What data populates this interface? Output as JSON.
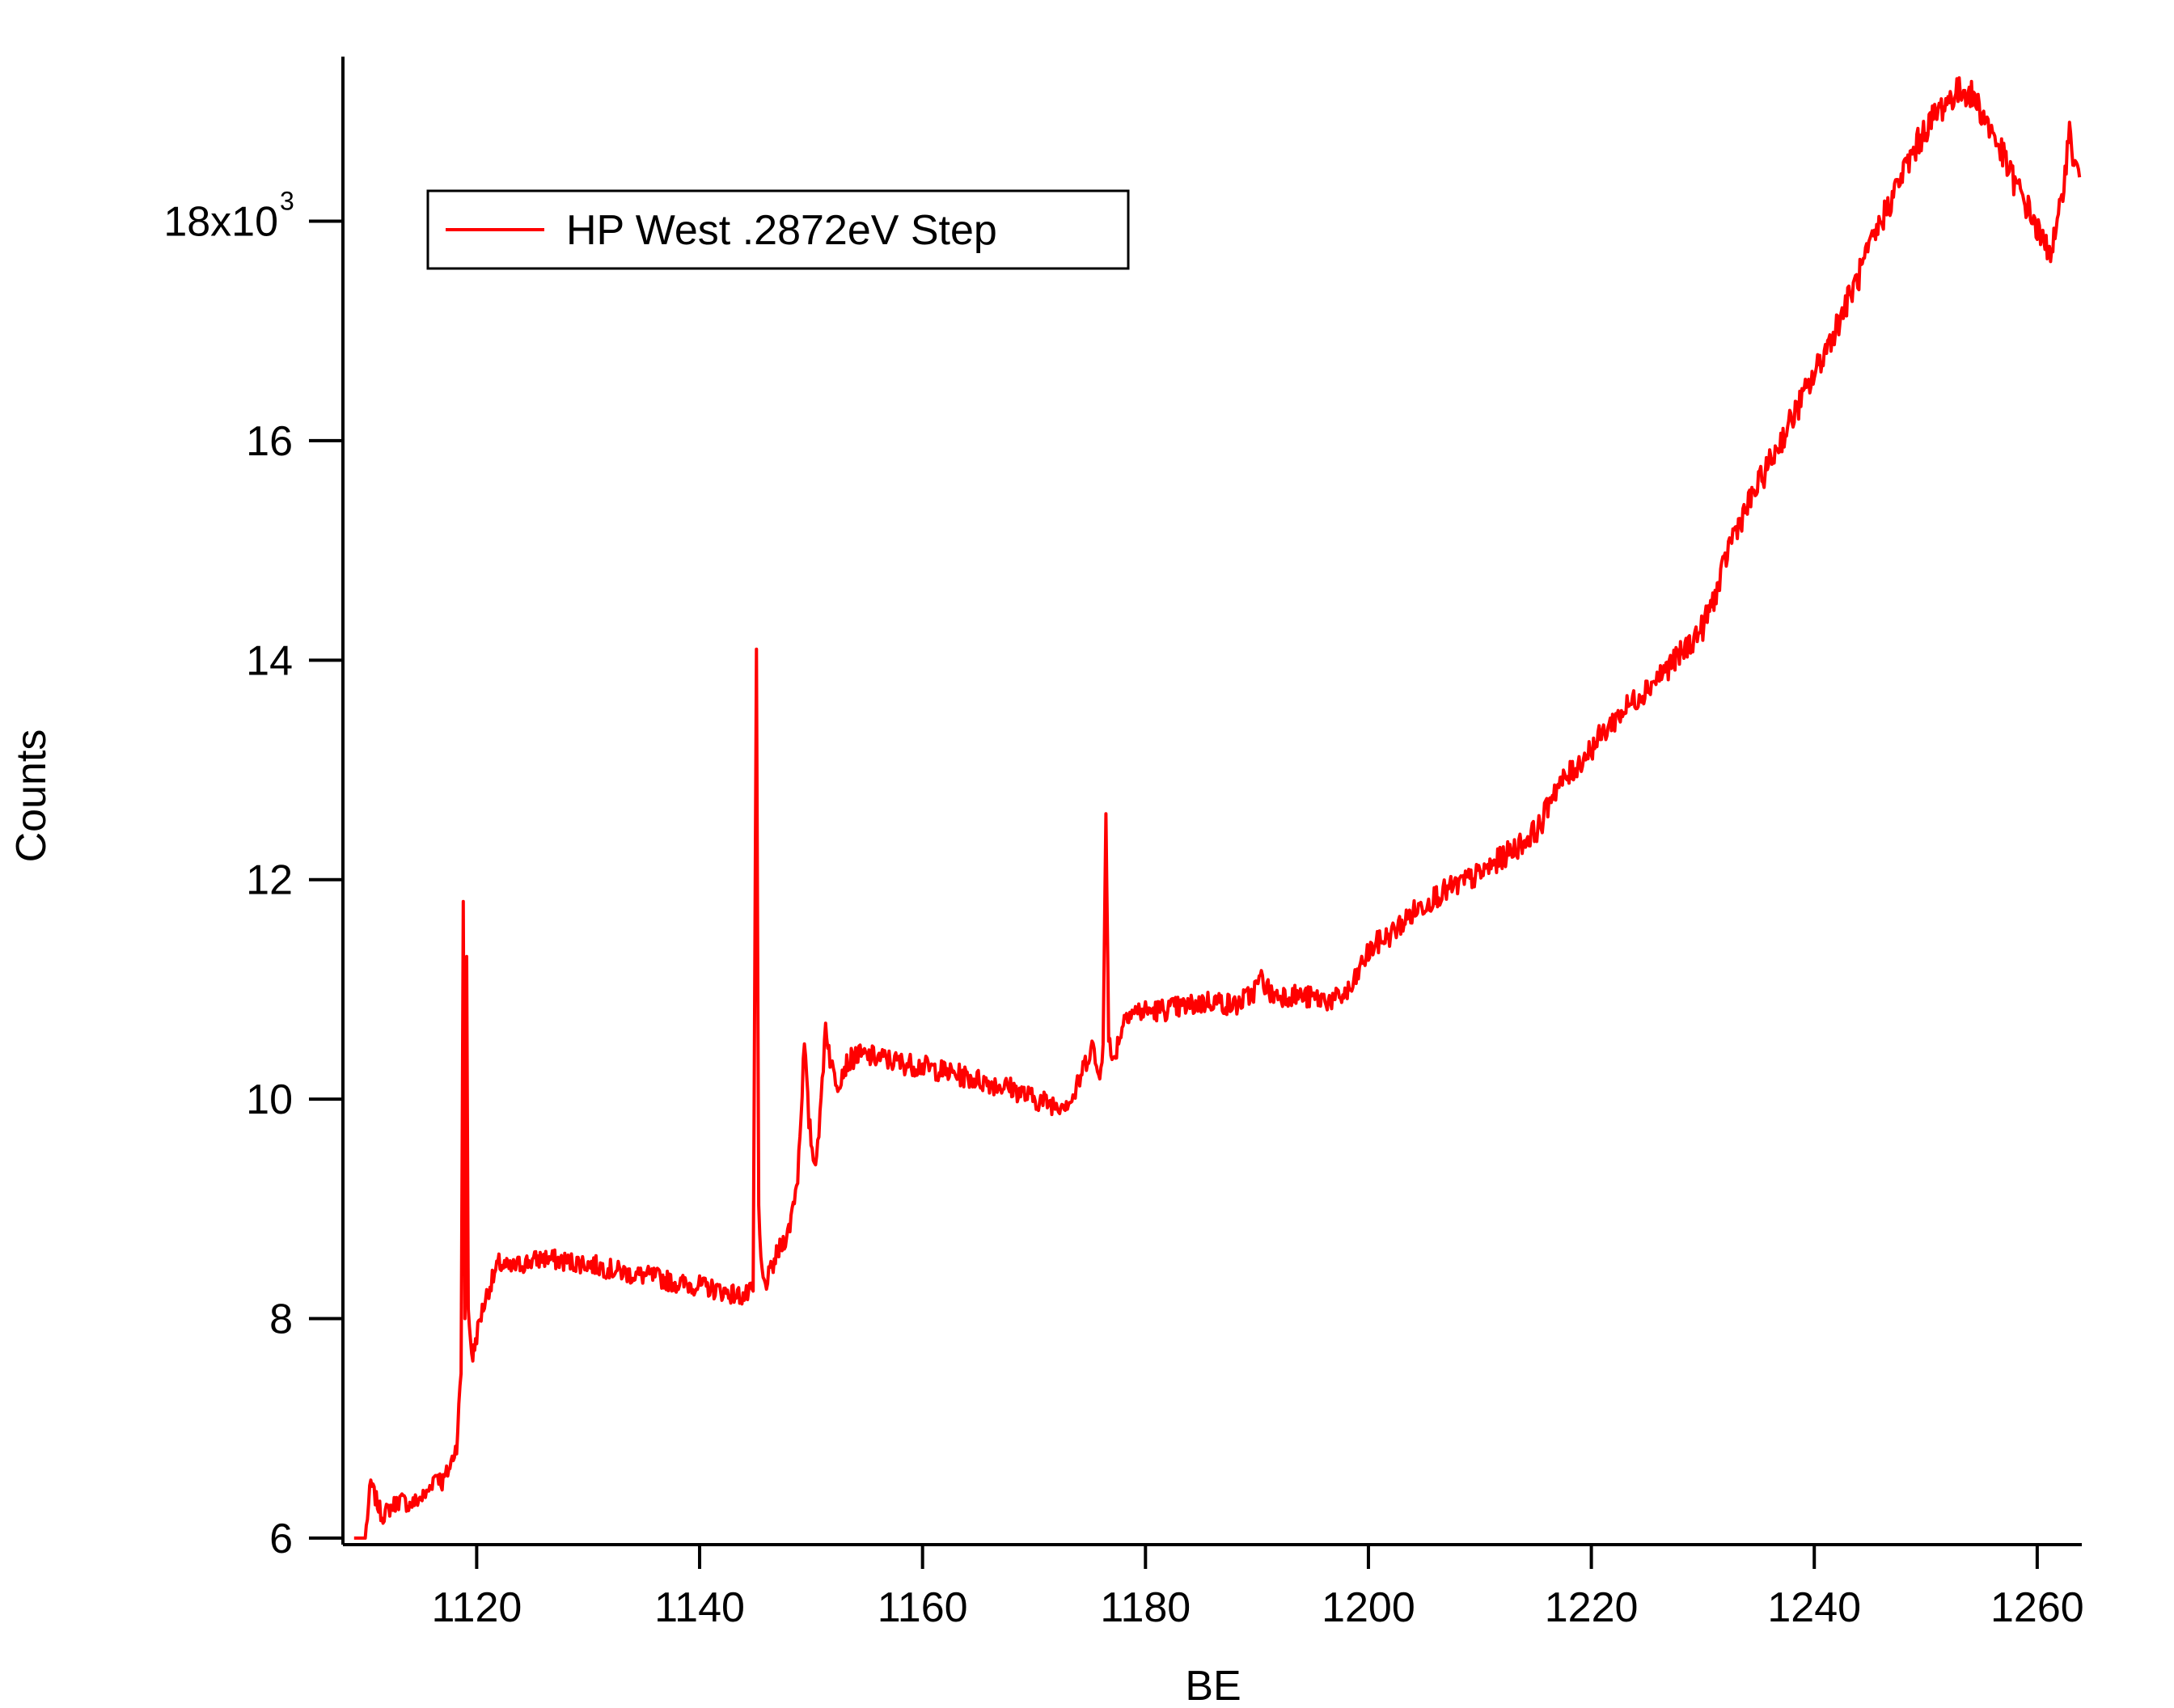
{
  "chart_data": {
    "type": "line",
    "title": "",
    "xlabel": "BE",
    "ylabel": "Counts",
    "xlim": [
      1108,
      1264
    ],
    "ylim": [
      5940,
      19500
    ],
    "x_ticks": [
      1120,
      1140,
      1160,
      1180,
      1200,
      1220,
      1240,
      1260
    ],
    "y_ticks": [
      6000,
      8000,
      10000,
      12000,
      14000,
      16000,
      18000
    ],
    "y_tick_labels": [
      "6",
      "8",
      "10",
      "12",
      "14",
      "16",
      "18x10"
    ],
    "y_tick_exponent": "3",
    "grid": false,
    "legend": {
      "position": "top-left",
      "entries": [
        "HP West .2872eV Step"
      ]
    },
    "colors": {
      "series": "#ff0000",
      "axis": "#000000"
    },
    "series": [
      {
        "name": "HP West .2872eV Step",
        "x": [
          1109.0,
          1110.0,
          1110.5,
          1110.8,
          1111.5,
          1112.5,
          1113.2,
          1114.0,
          1115.5,
          1116.4,
          1116.9,
          1117.6,
          1118.2,
          1118.6,
          1118.8,
          1118.95,
          1119.1,
          1119.25,
          1119.45,
          1119.65,
          1119.9,
          1120.3,
          1121.0,
          1122.0,
          1123.0,
          1124.0,
          1126.0,
          1128.0,
          1130.0,
          1132.0,
          1134.0,
          1136.0,
          1138.0,
          1140.0,
          1142.0,
          1144.0,
          1144.8,
          1145.1,
          1145.3,
          1145.5,
          1145.8,
          1146.3,
          1147.0,
          1148.0,
          1148.8,
          1149.4,
          1149.8,
          1150.3,
          1150.8,
          1151.3,
          1151.8,
          1152.4,
          1153.0,
          1154.0,
          1156.0,
          1158.0,
          1160.0,
          1162.0,
          1164.0,
          1166.0,
          1168.0,
          1170.0,
          1172.0,
          1173.5,
          1174.5,
          1175.2,
          1175.8,
          1176.2,
          1176.45,
          1176.7,
          1177.0,
          1177.6,
          1178.3,
          1180.0,
          1182.0,
          1184.0,
          1186.0,
          1188.0,
          1189.5,
          1190.4,
          1191.3,
          1193.0,
          1195.0,
          1197.0,
          1198.5,
          1199.5,
          1200.5,
          1202.0,
          1204.0,
          1206.0,
          1208.0,
          1210.0,
          1212.0,
          1214.0,
          1215.5,
          1216.5,
          1218.0,
          1220.0,
          1222.0,
          1224.0,
          1226.0,
          1228.0,
          1230.0,
          1231.5,
          1232.5,
          1234.0,
          1236.0,
          1238.0,
          1240.0,
          1242.0,
          1244.0,
          1246.0,
          1248.0,
          1250.0,
          1251.5,
          1252.5,
          1253.5,
          1254.5,
          1255.5,
          1256.5,
          1257.5,
          1258.5,
          1259.5,
          1260.5,
          1261.2,
          1261.8,
          1262.4,
          1262.9,
          1263.4,
          1263.8
        ],
        "y": [
          6000,
          6000,
          6500,
          6400,
          6200,
          6300,
          6350,
          6300,
          6400,
          6600,
          6500,
          6650,
          6850,
          7500,
          11800,
          8000,
          11300,
          8100,
          7800,
          7650,
          7800,
          8000,
          8250,
          8500,
          8450,
          8500,
          8550,
          8520,
          8500,
          8450,
          8400,
          8380,
          8320,
          8300,
          8250,
          8200,
          8250,
          14100,
          9000,
          8500,
          8300,
          8400,
          8600,
          8800,
          9300,
          10500,
          9800,
          9400,
          9800,
          10700,
          10300,
          10150,
          10300,
          10400,
          10380,
          10330,
          10300,
          10250,
          10200,
          10150,
          10100,
          10000,
          9950,
          10000,
          10300,
          10500,
          10200,
          10500,
          12600,
          10600,
          10300,
          10550,
          10800,
          10800,
          10820,
          10850,
          10900,
          10850,
          10950,
          11100,
          10950,
          10950,
          10920,
          10900,
          11000,
          11250,
          11400,
          11500,
          11700,
          11850,
          11950,
          12050,
          12200,
          12350,
          12500,
          12800,
          12950,
          13200,
          13450,
          13650,
          13850,
          14050,
          14300,
          14700,
          15100,
          15400,
          15800,
          16200,
          16600,
          17050,
          17500,
          18000,
          18450,
          18850,
          19050,
          19150,
          19200,
          19100,
          18900,
          18700,
          18450,
          18250,
          18050,
          17800,
          17750,
          17900,
          18400,
          18800,
          18500,
          18400
        ]
      }
    ]
  }
}
